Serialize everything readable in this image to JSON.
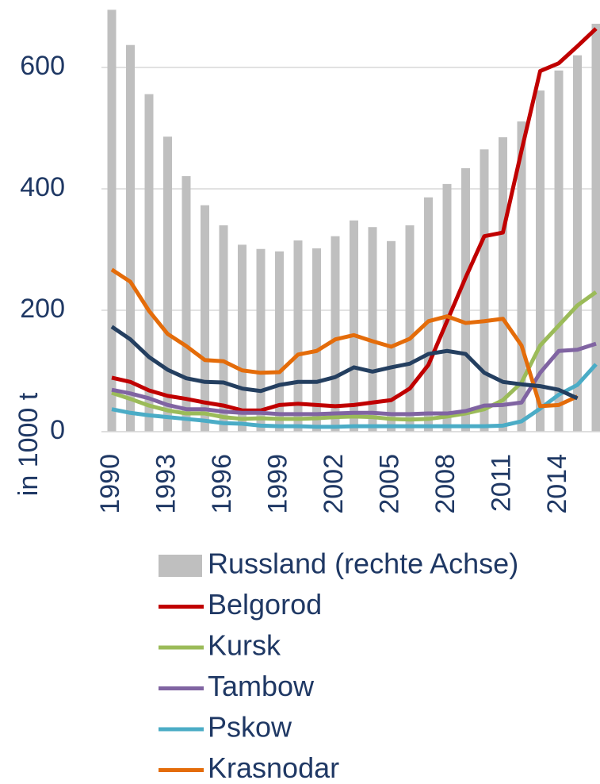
{
  "chart_data": {
    "type": "bar",
    "axis_label": "in 1000 t",
    "categories": [
      "1990",
      null,
      null,
      "1993",
      null,
      null,
      "1996",
      null,
      null,
      "1999",
      null,
      null,
      "2002",
      null,
      null,
      "2005",
      null,
      null,
      "2008",
      null,
      null,
      "2011",
      null,
      null,
      "2014",
      null,
      null
    ],
    "ylim": [
      0,
      700
    ],
    "yticks": [
      0,
      200,
      400,
      600
    ],
    "grid": true,
    "series": [
      {
        "name": "Russland (rechte Achse)",
        "type": "bar",
        "color": "#bfbfbf",
        "values": [
          695,
          637,
          556,
          486,
          421,
          373,
          340,
          308,
          301,
          297,
          315,
          302,
          322,
          348,
          337,
          314,
          340,
          386,
          408,
          434,
          465,
          485,
          511,
          562,
          595,
          620,
          672
        ]
      },
      {
        "name": "Belgorod",
        "type": "line",
        "color": "#c00000",
        "values": [
          89,
          82,
          68,
          59,
          54,
          48,
          43,
          35,
          35,
          44,
          46,
          44,
          42,
          44,
          48,
          52,
          71,
          110,
          182,
          254,
          322,
          328,
          463,
          594,
          607,
          635,
          664
        ]
      },
      {
        "name": "Kursk",
        "type": "line",
        "color": "#9bbb59",
        "values": [
          64,
          54,
          43,
          35,
          30,
          30,
          24,
          21,
          22,
          21,
          21,
          22,
          24,
          25,
          24,
          21,
          20,
          21,
          25,
          30,
          37,
          52,
          81,
          142,
          175,
          208,
          230
        ]
      },
      {
        "name": "Tambow",
        "type": "line",
        "color": "#8064a2",
        "values": [
          69,
          63,
          55,
          44,
          37,
          37,
          33,
          31,
          31,
          29,
          29,
          29,
          30,
          31,
          31,
          29,
          29,
          30,
          30,
          34,
          43,
          44,
          48,
          97,
          133,
          135,
          145
        ]
      },
      {
        "name": "Pskow",
        "type": "line",
        "color": "#4bacc6",
        "values": [
          37,
          31,
          27,
          24,
          21,
          18,
          14,
          13,
          10,
          9,
          9,
          8,
          8,
          9,
          9,
          9,
          9,
          9,
          9,
          9,
          9,
          10,
          17,
          38,
          61,
          77,
          111
        ]
      },
      {
        "name": "Krasnodar",
        "type": "line",
        "color": "#e46c0a",
        "values": [
          267,
          247,
          199,
          161,
          141,
          118,
          116,
          101,
          97,
          98,
          127,
          133,
          152,
          159,
          149,
          140,
          153,
          182,
          190,
          179,
          182,
          186,
          142,
          42,
          44,
          58,
          null
        ]
      },
      {
        "type": "line",
        "color": "#243f60",
        "values": [
          173,
          152,
          123,
          102,
          88,
          82,
          81,
          71,
          67,
          77,
          82,
          82,
          90,
          106,
          99,
          106,
          112,
          128,
          133,
          128,
          97,
          82,
          78,
          75,
          69,
          55,
          null
        ]
      }
    ]
  }
}
